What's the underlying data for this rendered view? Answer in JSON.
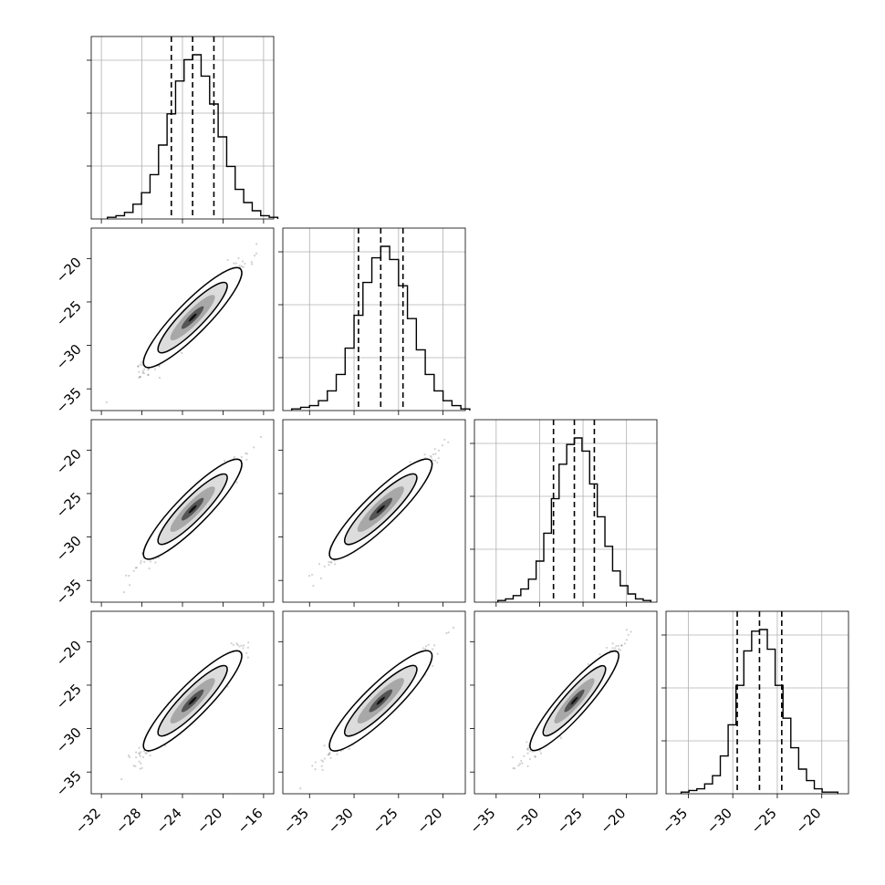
{
  "chart_data": {
    "type": "corner",
    "variables": [
      {
        "mean": -23.0,
        "sd": 2.1,
        "range": [
          -33.0,
          -15.0
        ],
        "ticks": [
          -32,
          -28,
          -24,
          -20,
          -16
        ],
        "tick_labels": [
          "−32",
          "−28",
          "−24",
          "−20",
          "−16"
        ],
        "quantiles": [
          -25.1,
          -23.0,
          -20.9
        ]
      },
      {
        "mean": -27.0,
        "sd": 2.5,
        "range": [
          -38.0,
          -17.5
        ],
        "ticks": [
          -35,
          -30,
          -25,
          -20
        ],
        "tick_labels": [
          "−35",
          "−30",
          "−25",
          "−20"
        ],
        "quantiles": [
          -29.5,
          -27.0,
          -24.5
        ]
      },
      {
        "mean": -26.0,
        "sd": 2.2,
        "range": [
          -37.5,
          -16.5
        ],
        "ticks": [
          -35,
          -30,
          -25,
          -20
        ],
        "tick_labels": [
          "−35",
          "−30",
          "−25",
          "−20"
        ],
        "quantiles": [
          -28.4,
          -26.0,
          -23.7
        ]
      },
      {
        "mean": -27.0,
        "sd": 2.2,
        "range": [
          -37.5,
          -17.0
        ],
        "ticks": [
          -35,
          -30,
          -25,
          -20
        ],
        "tick_labels": [
          "−35",
          "−30",
          "−25",
          "−20"
        ],
        "quantiles": [
          -29.5,
          -27.0,
          -24.5
        ]
      }
    ],
    "y_axis_ticks": [
      -20,
      -25,
      -30,
      -35
    ],
    "y_axis_tick_labels": [
      "−20",
      "−25",
      "−30",
      "−35"
    ],
    "y_axis_range": [
      -37.5,
      -16.5
    ],
    "correlation": 0.96,
    "histogram": {
      "counts_var1": [
        1,
        2,
        4,
        9,
        16,
        27,
        45,
        64,
        84,
        97,
        100,
        87,
        70,
        50,
        32,
        18,
        10,
        5,
        2,
        1
      ],
      "counts_var2": [
        1,
        2,
        3,
        6,
        12,
        22,
        38,
        58,
        78,
        93,
        100,
        92,
        76,
        56,
        37,
        22,
        12,
        6,
        3,
        1
      ],
      "counts_var3": [
        1,
        2,
        4,
        8,
        14,
        25,
        42,
        63,
        84,
        96,
        100,
        92,
        72,
        52,
        34,
        19,
        10,
        5,
        2,
        1
      ],
      "counts_var4": [
        1,
        2,
        3,
        6,
        11,
        23,
        42,
        66,
        87,
        99,
        100,
        88,
        66,
        46,
        28,
        15,
        8,
        3,
        1,
        1
      ]
    },
    "grid": true,
    "legend": "none",
    "title": "",
    "xlabel": "",
    "ylabel": ""
  }
}
